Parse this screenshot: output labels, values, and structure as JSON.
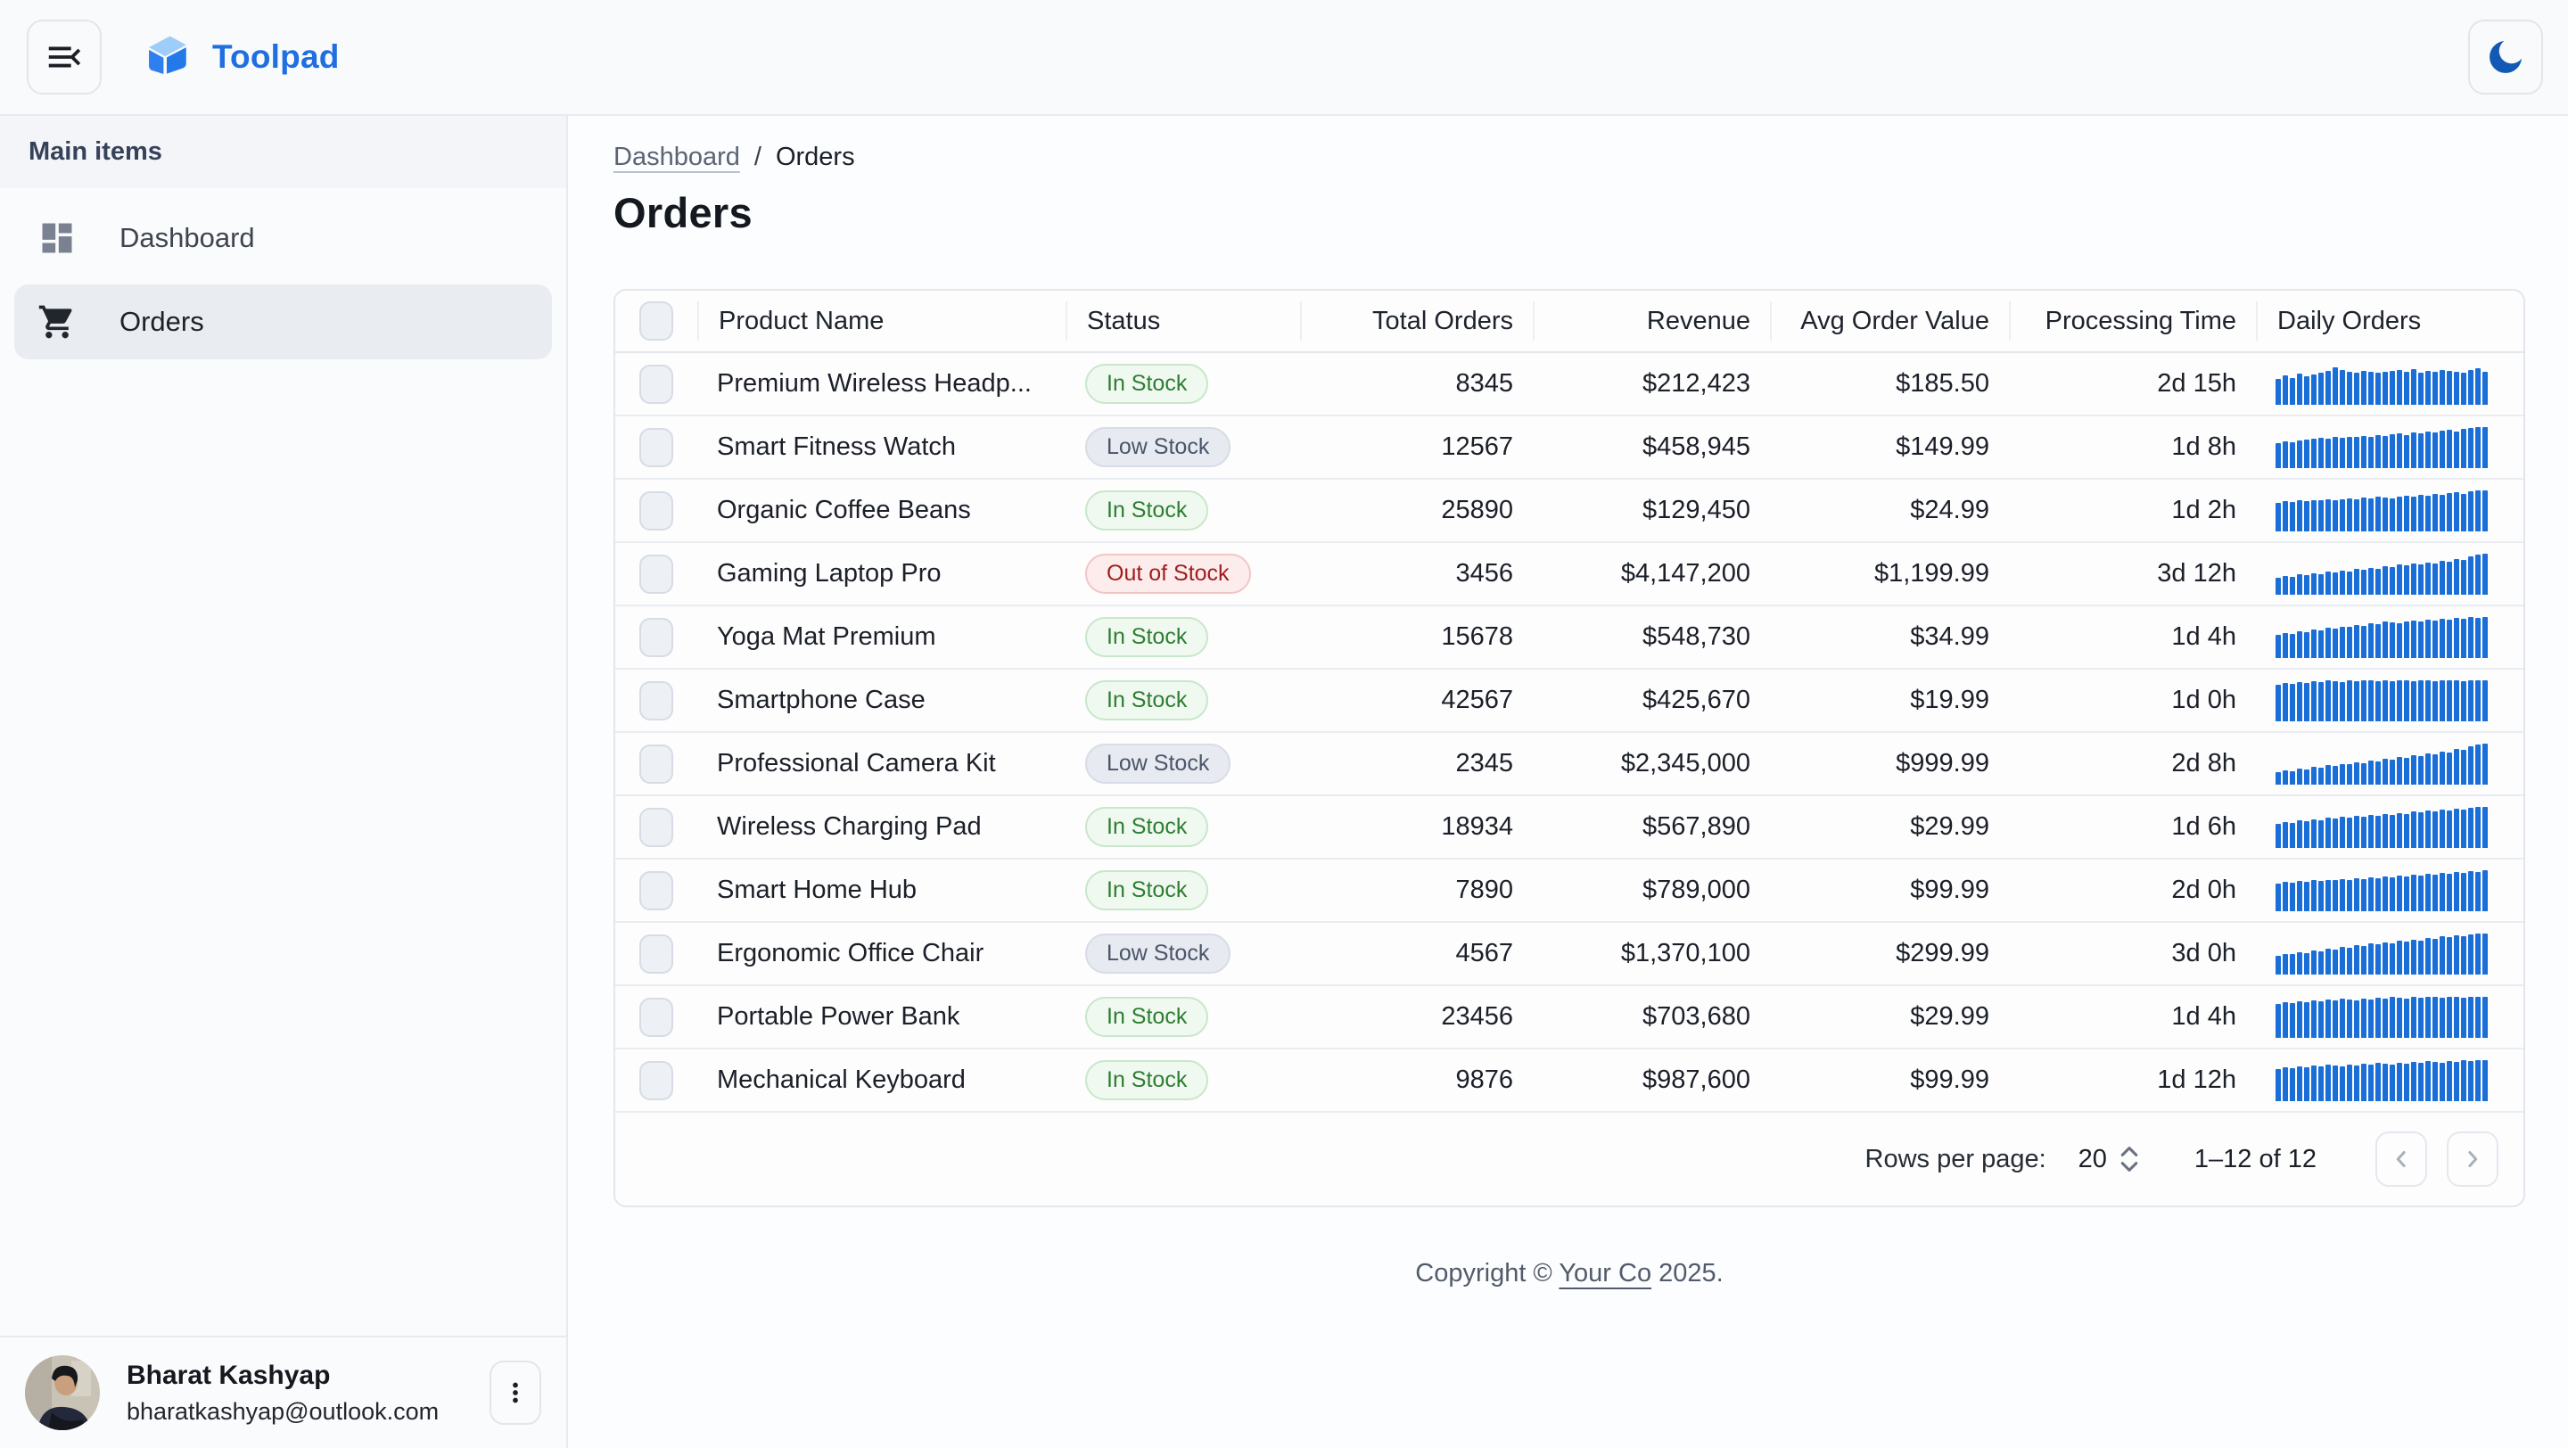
{
  "header": {
    "app_title": "Toolpad"
  },
  "sidebar": {
    "section_label": "Main items",
    "items": [
      {
        "label": "Dashboard",
        "icon": "dashboard-icon",
        "selected": false
      },
      {
        "label": "Orders",
        "icon": "cart-icon",
        "selected": true
      }
    ],
    "account": {
      "name": "Bharat Kashyap",
      "email": "bharatkashyap@outlook.com"
    }
  },
  "breadcrumb": {
    "parent": "Dashboard",
    "separator": "/",
    "current": "Orders"
  },
  "page": {
    "title": "Orders"
  },
  "table": {
    "columns": [
      "Product Name",
      "Status",
      "Total Orders",
      "Revenue",
      "Avg Order Value",
      "Processing Time",
      "Daily Orders"
    ],
    "rows": [
      {
        "product": "Premium Wireless Headp...",
        "status": "In Stock",
        "total_orders": "8345",
        "revenue": "$212,423",
        "avg_order_value": "$185.50",
        "processing_time": "2d 15h",
        "daily_orders": [
          62,
          70,
          65,
          75,
          68,
          72,
          78,
          82,
          90,
          84,
          80,
          78,
          82,
          80,
          78,
          80,
          82,
          84,
          80,
          86,
          78,
          82,
          80,
          84,
          82,
          80,
          78,
          84,
          88,
          80
        ]
      },
      {
        "product": "Smart Fitness Watch",
        "status": "Low Stock",
        "total_orders": "12567",
        "revenue": "$458,945",
        "avg_order_value": "$149.99",
        "processing_time": "1d 8h",
        "daily_orders": [
          60,
          64,
          62,
          66,
          68,
          70,
          72,
          70,
          74,
          72,
          76,
          74,
          78,
          76,
          80,
          78,
          82,
          84,
          80,
          86,
          84,
          88,
          86,
          90,
          92,
          88,
          94,
          96,
          98,
          100
        ]
      },
      {
        "product": "Organic Coffee Beans",
        "status": "In Stock",
        "total_orders": "25890",
        "revenue": "$129,450",
        "avg_order_value": "$24.99",
        "processing_time": "1d 2h",
        "daily_orders": [
          68,
          72,
          70,
          74,
          72,
          76,
          74,
          78,
          76,
          78,
          80,
          78,
          82,
          80,
          84,
          82,
          80,
          84,
          86,
          84,
          88,
          86,
          90,
          88,
          92,
          94,
          90,
          96,
          98,
          100
        ]
      },
      {
        "product": "Gaming Laptop Pro",
        "status": "Out of Stock",
        "total_orders": "3456",
        "revenue": "$4,147,200",
        "avg_order_value": "$1,199.99",
        "processing_time": "3d 12h",
        "daily_orders": [
          40,
          44,
          42,
          48,
          46,
          52,
          50,
          56,
          54,
          58,
          56,
          62,
          60,
          64,
          62,
          68,
          66,
          72,
          70,
          74,
          72,
          78,
          76,
          82,
          80,
          86,
          84,
          92,
          96,
          100
        ]
      },
      {
        "product": "Yoga Mat Premium",
        "status": "In Stock",
        "total_orders": "15678",
        "revenue": "$548,730",
        "avg_order_value": "$34.99",
        "processing_time": "1d 4h",
        "daily_orders": [
          55,
          60,
          58,
          64,
          62,
          68,
          66,
          72,
          70,
          76,
          74,
          80,
          78,
          84,
          82,
          88,
          86,
          84,
          88,
          90,
          88,
          92,
          90,
          94,
          92,
          96,
          94,
          98,
          96,
          100
        ]
      },
      {
        "product": "Smartphone Case",
        "status": "In Stock",
        "total_orders": "42567",
        "revenue": "$425,670",
        "avg_order_value": "$19.99",
        "processing_time": "1d 0h",
        "daily_orders": [
          88,
          92,
          90,
          94,
          92,
          96,
          94,
          98,
          96,
          94,
          98,
          96,
          100,
          98,
          96,
          98,
          96,
          100,
          98,
          96,
          100,
          98,
          96,
          98,
          100,
          98,
          96,
          100,
          98,
          100
        ]
      },
      {
        "product": "Professional Camera Kit",
        "status": "Low Stock",
        "total_orders": "2345",
        "revenue": "$2,345,000",
        "avg_order_value": "$999.99",
        "processing_time": "2d 8h",
        "daily_orders": [
          30,
          34,
          32,
          38,
          36,
          42,
          40,
          46,
          44,
          50,
          48,
          54,
          52,
          58,
          56,
          62,
          60,
          66,
          64,
          70,
          68,
          74,
          72,
          80,
          78,
          86,
          84,
          92,
          96,
          100
        ]
      },
      {
        "product": "Wireless Charging Pad",
        "status": "In Stock",
        "total_orders": "18934",
        "revenue": "$567,890",
        "avg_order_value": "$29.99",
        "processing_time": "1d 6h",
        "daily_orders": [
          58,
          62,
          60,
          66,
          64,
          68,
          66,
          72,
          70,
          74,
          72,
          78,
          76,
          80,
          78,
          82,
          80,
          84,
          82,
          88,
          86,
          90,
          88,
          92,
          90,
          94,
          92,
          96,
          98,
          100
        ]
      },
      {
        "product": "Smart Home Hub",
        "status": "In Stock",
        "total_orders": "7890",
        "revenue": "$789,000",
        "avg_order_value": "$99.99",
        "processing_time": "2d 0h",
        "daily_orders": [
          66,
          70,
          68,
          72,
          70,
          74,
          72,
          76,
          74,
          78,
          76,
          80,
          78,
          82,
          80,
          84,
          82,
          86,
          84,
          88,
          86,
          90,
          88,
          92,
          90,
          94,
          92,
          96,
          94,
          98
        ]
      },
      {
        "product": "Ergonomic Office Chair",
        "status": "Low Stock",
        "total_orders": "4567",
        "revenue": "$1,370,100",
        "avg_order_value": "$299.99",
        "processing_time": "3d 0h",
        "daily_orders": [
          45,
          50,
          48,
          54,
          52,
          58,
          56,
          62,
          60,
          66,
          64,
          70,
          68,
          74,
          72,
          78,
          76,
          82,
          80,
          84,
          82,
          88,
          86,
          92,
          90,
          94,
          92,
          96,
          98,
          100
        ]
      },
      {
        "product": "Portable Power Bank",
        "status": "In Stock",
        "total_orders": "23456",
        "revenue": "$703,680",
        "avg_order_value": "$29.99",
        "processing_time": "1d 4h",
        "daily_orders": [
          82,
          86,
          84,
          88,
          86,
          90,
          88,
          92,
          90,
          94,
          92,
          90,
          94,
          92,
          96,
          94,
          98,
          96,
          94,
          98,
          96,
          100,
          98,
          96,
          100,
          98,
          96,
          100,
          98,
          100
        ]
      },
      {
        "product": "Mechanical Keyboard",
        "status": "In Stock",
        "total_orders": "9876",
        "revenue": "$987,600",
        "avg_order_value": "$99.99",
        "processing_time": "1d 12h",
        "daily_orders": [
          78,
          82,
          80,
          84,
          82,
          86,
          84,
          88,
          86,
          84,
          88,
          86,
          90,
          88,
          92,
          90,
          88,
          92,
          90,
          94,
          92,
          96,
          94,
          92,
          96,
          94,
          98,
          96,
          100,
          98
        ]
      }
    ]
  },
  "pagination": {
    "rows_per_page_label": "Rows per page:",
    "rows_per_page_value": "20",
    "range": "1–12 of 12"
  },
  "footer": {
    "prefix": "Copyright © ",
    "link": "Your Co",
    "suffix": " 2025."
  },
  "colors": {
    "accent_blue": "#1f6fe0",
    "sparkline_blue": "#1a6ed8",
    "in_stock_text": "#2e7d32",
    "low_stock_text": "#4a5568",
    "out_of_stock_text": "#9f1d1d",
    "moon_icon": "#1258b5"
  }
}
